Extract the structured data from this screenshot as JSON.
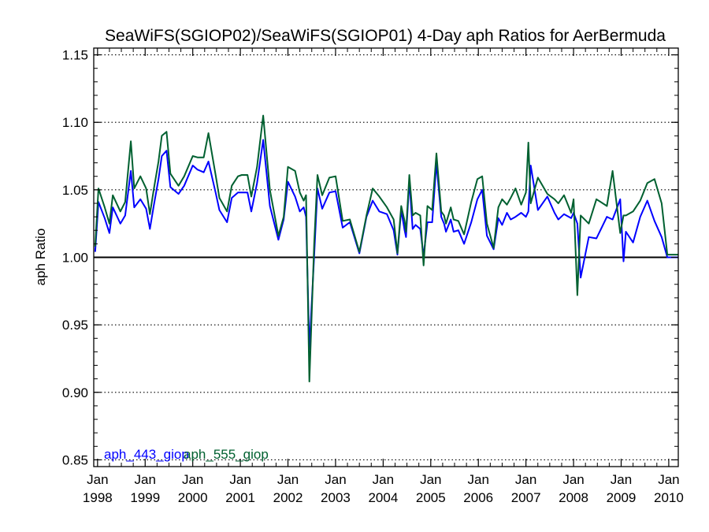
{
  "chart_data": {
    "type": "line",
    "title": "SeaWiFS(SGIOP02)/SeaWiFS(SGIOP01) 4-Day aph Ratios for AerBermuda",
    "xlabel": "",
    "ylabel": "aph Ratio",
    "ylim": [
      0.845,
      1.155
    ],
    "xlim": [
      1997.92,
      2010.2
    ],
    "yticks": [
      "0.85",
      "0.90",
      "0.95",
      "1.00",
      "1.05",
      "1.10",
      "1.15"
    ],
    "xticks": [
      {
        "month": "Jan",
        "year": "1998"
      },
      {
        "month": "Jan",
        "year": "1999"
      },
      {
        "month": "Jan",
        "year": "2000"
      },
      {
        "month": "Jan",
        "year": "2001"
      },
      {
        "month": "Jan",
        "year": "2002"
      },
      {
        "month": "Jan",
        "year": "2003"
      },
      {
        "month": "Jan",
        "year": "2004"
      },
      {
        "month": "Jan",
        "year": "2005"
      },
      {
        "month": "Jan",
        "year": "2006"
      },
      {
        "month": "Jan",
        "year": "2007"
      },
      {
        "month": "Jan",
        "year": "2008"
      },
      {
        "month": "Jan",
        "year": "2009"
      },
      {
        "month": "Jan",
        "year": "2010"
      }
    ],
    "reference_line": 1.0,
    "grid": "dotted horizontal",
    "legend_position": "bottom-left",
    "series": [
      {
        "name": "aph_443_giop",
        "color": "#0000ff",
        "x": [
          1997.95,
          1998.02,
          1998.15,
          1998.25,
          1998.32,
          1998.48,
          1998.58,
          1998.7,
          1998.77,
          1998.9,
          1999.02,
          1999.1,
          1999.18,
          1999.28,
          1999.35,
          1999.45,
          1999.53,
          1999.7,
          1999.82,
          2000.0,
          2000.1,
          2000.23,
          2000.33,
          2000.48,
          2000.56,
          2000.72,
          2000.82,
          2000.95,
          2001.03,
          2001.15,
          2001.23,
          2001.35,
          2001.48,
          2001.62,
          2001.8,
          2001.91,
          2002.0,
          2002.15,
          2002.25,
          2002.33,
          2002.38,
          2002.45,
          2002.55,
          2002.62,
          2002.72,
          2002.87,
          2003.0,
          2003.15,
          2003.3,
          2003.5,
          2003.65,
          2003.78,
          2003.92,
          2004.08,
          2004.22,
          2004.3,
          2004.38,
          2004.45,
          2004.48,
          2004.55,
          2004.62,
          2004.68,
          2004.78,
          2004.85,
          2004.93,
          2005.03,
          2005.12,
          2005.22,
          2005.28,
          2005.32,
          2005.42,
          2005.48,
          2005.58,
          2005.7,
          2005.85,
          2005.98,
          2006.08,
          2006.18,
          2006.32,
          2006.42,
          2006.5,
          2006.6,
          2006.68,
          2006.78,
          2006.9,
          2007.0,
          2007.05,
          2007.1,
          2007.25,
          2007.45,
          2007.6,
          2007.68,
          2007.8,
          2007.95,
          2008.0,
          2008.08,
          2008.15,
          2008.32,
          2008.48,
          2008.7,
          2008.82,
          2008.98,
          2009.05,
          2009.1,
          2009.25,
          2009.4,
          2009.55,
          2009.7,
          2009.85,
          2009.97,
          2010.05,
          2010.2
        ],
        "y": [
          1.004,
          1.041,
          1.029,
          1.018,
          1.037,
          1.025,
          1.031,
          1.064,
          1.037,
          1.043,
          1.036,
          1.021,
          1.038,
          1.058,
          1.075,
          1.079,
          1.052,
          1.047,
          1.053,
          1.068,
          1.065,
          1.063,
          1.071,
          1.048,
          1.035,
          1.026,
          1.044,
          1.048,
          1.048,
          1.048,
          1.034,
          1.055,
          1.087,
          1.038,
          1.013,
          1.028,
          1.056,
          1.045,
          1.034,
          1.037,
          1.03,
          0.932,
          1.001,
          1.051,
          1.036,
          1.048,
          1.049,
          1.022,
          1.026,
          1.003,
          1.03,
          1.042,
          1.034,
          1.032,
          1.02,
          1.002,
          1.035,
          1.02,
          1.015,
          1.057,
          1.021,
          1.024,
          1.021,
          1.001,
          1.026,
          1.026,
          1.07,
          1.03,
          1.025,
          1.019,
          1.028,
          1.019,
          1.02,
          1.01,
          1.026,
          1.043,
          1.05,
          1.016,
          1.006,
          1.029,
          1.024,
          1.033,
          1.028,
          1.03,
          1.033,
          1.03,
          1.034,
          1.068,
          1.035,
          1.045,
          1.033,
          1.028,
          1.032,
          1.029,
          1.033,
          1.025,
          0.985,
          1.015,
          1.014,
          1.03,
          1.028,
          1.043,
          0.997,
          1.019,
          1.011,
          1.03,
          1.042,
          1.027,
          1.015,
          1.0,
          1.0,
          1.0
        ]
      },
      {
        "name": "aph_555_giop",
        "color": "#006030",
        "x": [
          1997.95,
          1998.02,
          1998.15,
          1998.25,
          1998.32,
          1998.48,
          1998.58,
          1998.7,
          1998.77,
          1998.9,
          1999.02,
          1999.1,
          1999.18,
          1999.28,
          1999.35,
          1999.45,
          1999.53,
          1999.7,
          1999.82,
          2000.0,
          2000.1,
          2000.23,
          2000.33,
          2000.48,
          2000.56,
          2000.72,
          2000.82,
          2000.95,
          2001.03,
          2001.15,
          2001.23,
          2001.35,
          2001.48,
          2001.62,
          2001.8,
          2001.91,
          2002.0,
          2002.15,
          2002.25,
          2002.33,
          2002.38,
          2002.45,
          2002.55,
          2002.62,
          2002.72,
          2002.87,
          2003.0,
          2003.15,
          2003.3,
          2003.5,
          2003.65,
          2003.78,
          2003.92,
          2004.08,
          2004.22,
          2004.3,
          2004.38,
          2004.45,
          2004.48,
          2004.55,
          2004.62,
          2004.68,
          2004.78,
          2004.85,
          2004.93,
          2005.03,
          2005.12,
          2005.22,
          2005.28,
          2005.32,
          2005.42,
          2005.48,
          2005.58,
          2005.7,
          2005.85,
          2005.98,
          2006.08,
          2006.18,
          2006.32,
          2006.42,
          2006.5,
          2006.6,
          2006.68,
          2006.78,
          2006.9,
          2007.0,
          2007.05,
          2007.1,
          2007.25,
          2007.45,
          2007.6,
          2007.68,
          2007.8,
          2007.95,
          2008.0,
          2008.08,
          2008.15,
          2008.32,
          2008.48,
          2008.7,
          2008.82,
          2008.98,
          2009.05,
          2009.1,
          2009.25,
          2009.4,
          2009.55,
          2009.7,
          2009.85,
          2009.97,
          2010.05,
          2010.2
        ],
        "y": [
          1.008,
          1.051,
          1.037,
          1.025,
          1.046,
          1.034,
          1.041,
          1.086,
          1.051,
          1.06,
          1.051,
          1.032,
          1.05,
          1.071,
          1.09,
          1.093,
          1.062,
          1.053,
          1.06,
          1.075,
          1.074,
          1.074,
          1.092,
          1.061,
          1.044,
          1.034,
          1.053,
          1.06,
          1.061,
          1.061,
          1.045,
          1.067,
          1.105,
          1.05,
          1.016,
          1.03,
          1.067,
          1.064,
          1.048,
          1.042,
          1.046,
          0.908,
          1.01,
          1.061,
          1.046,
          1.059,
          1.06,
          1.027,
          1.028,
          1.004,
          1.031,
          1.051,
          1.045,
          1.037,
          1.028,
          1.003,
          1.038,
          1.027,
          1.019,
          1.061,
          1.031,
          1.033,
          1.031,
          0.994,
          1.038,
          1.035,
          1.077,
          1.034,
          1.031,
          1.025,
          1.037,
          1.028,
          1.027,
          1.017,
          1.041,
          1.058,
          1.06,
          1.025,
          1.007,
          1.037,
          1.043,
          1.039,
          1.044,
          1.051,
          1.039,
          1.048,
          1.085,
          1.04,
          1.059,
          1.047,
          1.043,
          1.04,
          1.046,
          1.033,
          1.043,
          0.972,
          1.031,
          1.025,
          1.043,
          1.038,
          1.064,
          1.018,
          1.031,
          1.031,
          1.034,
          1.042,
          1.055,
          1.058,
          1.04,
          1.002,
          1.002,
          1.002
        ]
      }
    ]
  }
}
